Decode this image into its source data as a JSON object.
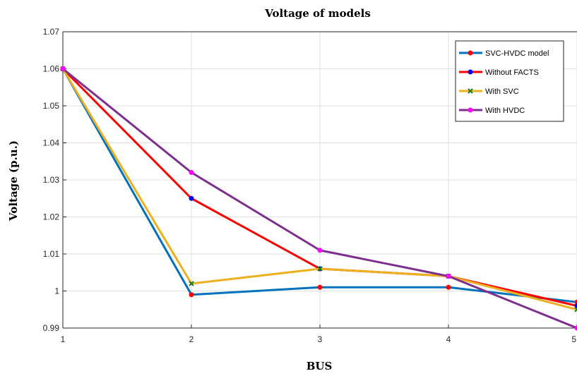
{
  "chart_data": {
    "type": "line",
    "title": "Voltage of models",
    "xlabel": "BUS",
    "ylabel": "Voltage (p.u.)",
    "x": [
      1,
      2,
      3,
      4,
      5
    ],
    "xlim": [
      1,
      5
    ],
    "ylim": [
      0.99,
      1.07
    ],
    "xticks": [
      "1",
      "2",
      "3",
      "4",
      "5"
    ],
    "yticks": [
      "0.99",
      "1",
      "1.01",
      "1.02",
      "1.03",
      "1.04",
      "1.05",
      "1.06",
      "1.07"
    ],
    "grid": true,
    "legend_position": "top-right",
    "series": [
      {
        "name": "SVC-HVDC  model",
        "values": [
          1.06,
          0.999,
          1.001,
          1.001,
          0.997
        ],
        "line_color": "#0072BD",
        "marker_color": "#FF0000",
        "marker": "dot"
      },
      {
        "name": "Without FACTS",
        "values": [
          1.06,
          1.025,
          1.006,
          1.004,
          0.996
        ],
        "line_color": "#FF0000",
        "marker_color": "#0000FF",
        "marker": "dot"
      },
      {
        "name": "With SVC",
        "values": [
          1.06,
          1.002,
          1.006,
          1.004,
          0.995
        ],
        "line_color": "#EDB120",
        "marker_color": "#1A7A1A",
        "marker": "x"
      },
      {
        "name": "With HVDC",
        "values": [
          1.06,
          1.032,
          1.011,
          1.004,
          0.99
        ],
        "line_color": "#7E2F8E",
        "marker_color": "#FF00FF",
        "marker": "dot"
      }
    ]
  }
}
